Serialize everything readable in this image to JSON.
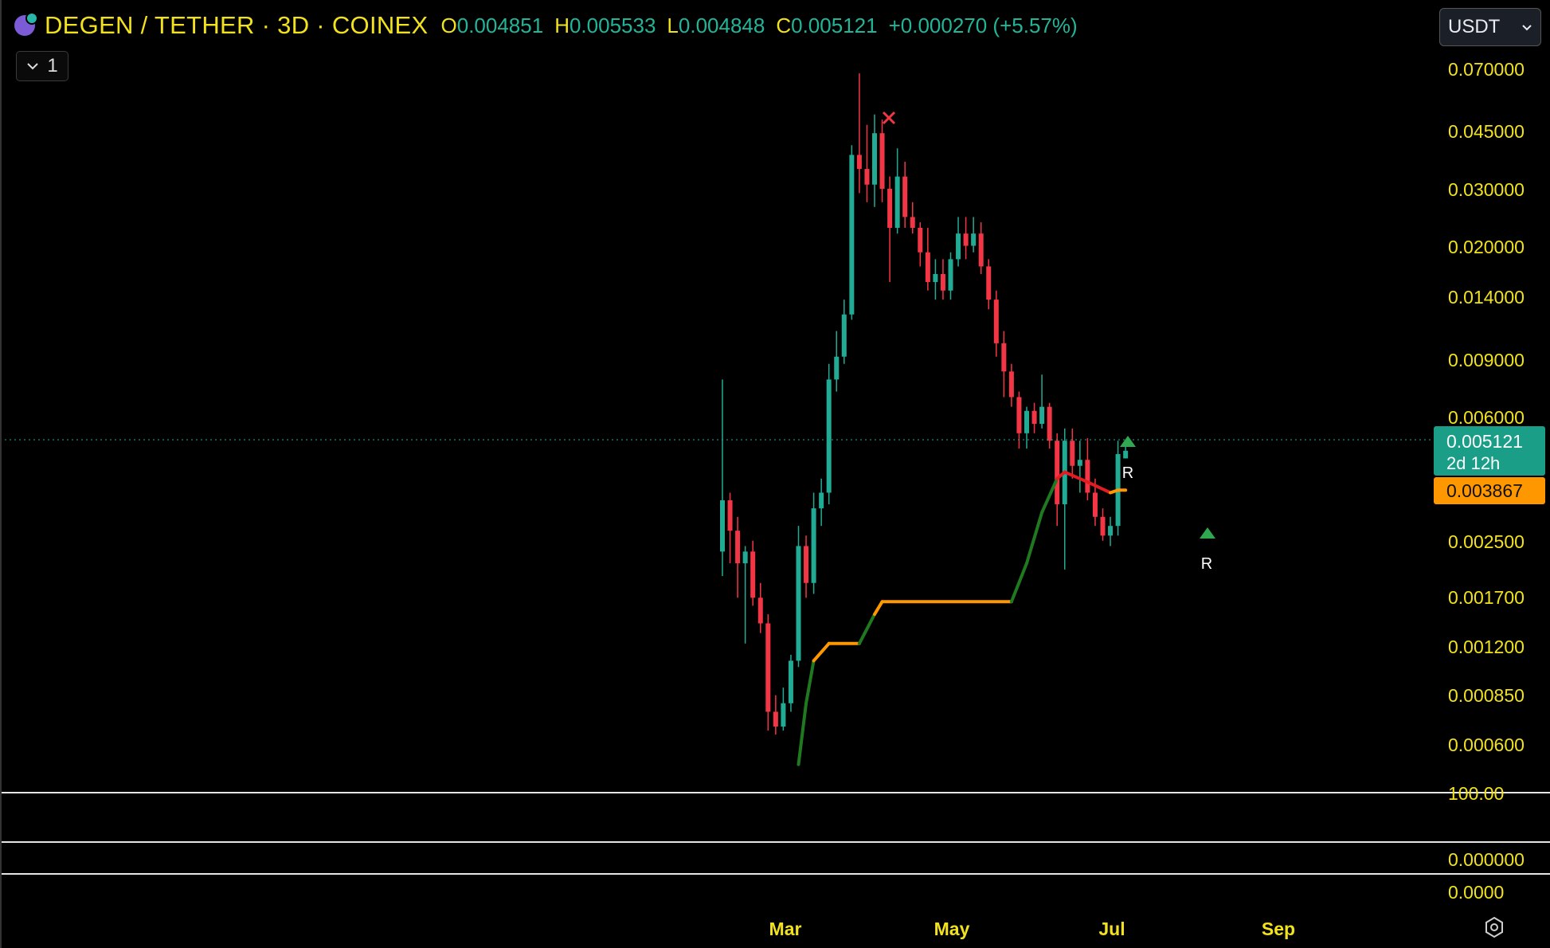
{
  "header": {
    "title": "DEGEN / TETHER · 3D · COINEX",
    "ohlc": [
      {
        "k": "O",
        "v": "0.004851"
      },
      {
        "k": "H",
        "v": "0.005533"
      },
      {
        "k": "L",
        "v": "0.004848"
      },
      {
        "k": "C",
        "v": "0.005121"
      }
    ],
    "change": "+0.000270 (+5.57%)",
    "collapse_count": "1"
  },
  "currency_select": {
    "value": "USDT"
  },
  "price_scale": {
    "ticks": [
      "0.070000",
      "0.045000",
      "0.030000",
      "0.020000",
      "0.014000",
      "0.009000",
      "0.006000",
      "0.002500",
      "0.001700",
      "0.001200",
      "0.000850",
      "0.000600"
    ],
    "last_price": "0.005121",
    "countdown": "2d 12h",
    "indicator_value": "0.003867"
  },
  "sub_panes": {
    "pane1_tick": "100.00",
    "pane2_tick": "0.000000",
    "pane3_tick": "0.0000"
  },
  "markers": {
    "r1": "R",
    "r2": "R"
  },
  "time_axis": [
    "Mar",
    "May",
    "Jul",
    "Sep"
  ],
  "colors": {
    "up": "#22ab94",
    "down": "#f23645",
    "trail_green": "#1f7a1f",
    "trail_orange": "#ff9800",
    "trail_red": "#e31b23",
    "accent": "#f2e21e"
  },
  "icons": [
    "logo-icon",
    "chevron-down-icon",
    "close-x-icon",
    "settings-icon"
  ],
  "chart_data": {
    "type": "candlestick",
    "title": "DEGEN / TETHER · 3D · COINEX",
    "scale": "log",
    "ylim": [
      0.00045,
      0.085
    ],
    "x_labels": [
      "Mar",
      "May",
      "Jul",
      "Sep"
    ],
    "candles": [
      [
        0.0025,
        0.0085,
        0.0021,
        0.0036
      ],
      [
        0.0036,
        0.0038,
        0.0023,
        0.0029
      ],
      [
        0.0029,
        0.0032,
        0.0018,
        0.0023
      ],
      [
        0.0023,
        0.0026,
        0.0013,
        0.0025
      ],
      [
        0.0025,
        0.0027,
        0.0017,
        0.0018
      ],
      [
        0.0018,
        0.002,
        0.0014,
        0.0015
      ],
      [
        0.0015,
        0.0016,
        0.0007,
        0.0008
      ],
      [
        0.0008,
        0.0009,
        0.00068,
        0.00072
      ],
      [
        0.00072,
        0.00095,
        0.0007,
        0.00085
      ],
      [
        0.00085,
        0.0012,
        0.0008,
        0.00115
      ],
      [
        0.00115,
        0.003,
        0.0011,
        0.0026
      ],
      [
        0.0026,
        0.0028,
        0.0018,
        0.002
      ],
      [
        0.002,
        0.0038,
        0.00185,
        0.0034
      ],
      [
        0.0034,
        0.0042,
        0.003,
        0.0038
      ],
      [
        0.0038,
        0.0095,
        0.0035,
        0.0085
      ],
      [
        0.0085,
        0.012,
        0.0078,
        0.01
      ],
      [
        0.01,
        0.015,
        0.0095,
        0.0135
      ],
      [
        0.0135,
        0.045,
        0.013,
        0.042
      ],
      [
        0.042,
        0.075,
        0.032,
        0.038
      ],
      [
        0.038,
        0.052,
        0.03,
        0.034
      ],
      [
        0.034,
        0.056,
        0.029,
        0.049
      ],
      [
        0.049,
        0.054,
        0.03,
        0.033
      ],
      [
        0.033,
        0.036,
        0.017,
        0.025
      ],
      [
        0.025,
        0.044,
        0.024,
        0.036
      ],
      [
        0.036,
        0.04,
        0.025,
        0.027
      ],
      [
        0.027,
        0.03,
        0.024,
        0.025
      ],
      [
        0.025,
        0.026,
        0.019,
        0.021
      ],
      [
        0.021,
        0.025,
        0.016,
        0.017
      ],
      [
        0.017,
        0.02,
        0.015,
        0.018
      ],
      [
        0.018,
        0.02,
        0.015,
        0.016
      ],
      [
        0.016,
        0.021,
        0.015,
        0.02
      ],
      [
        0.02,
        0.027,
        0.019,
        0.024
      ],
      [
        0.024,
        0.027,
        0.02,
        0.022
      ],
      [
        0.022,
        0.027,
        0.021,
        0.024
      ],
      [
        0.024,
        0.026,
        0.018,
        0.019
      ],
      [
        0.019,
        0.02,
        0.014,
        0.015
      ],
      [
        0.015,
        0.016,
        0.01,
        0.011
      ],
      [
        0.011,
        0.012,
        0.0075,
        0.009
      ],
      [
        0.009,
        0.0095,
        0.007,
        0.0075
      ],
      [
        0.0075,
        0.0078,
        0.0052,
        0.0058
      ],
      [
        0.0058,
        0.007,
        0.0052,
        0.0068
      ],
      [
        0.0068,
        0.0072,
        0.0058,
        0.0062
      ],
      [
        0.0062,
        0.0088,
        0.006,
        0.007
      ],
      [
        0.007,
        0.0072,
        0.0052,
        0.0055
      ],
      [
        0.0055,
        0.0058,
        0.003,
        0.0035
      ],
      [
        0.0035,
        0.006,
        0.0022,
        0.0055
      ],
      [
        0.0055,
        0.006,
        0.0042,
        0.0046
      ],
      [
        0.0046,
        0.0055,
        0.0038,
        0.0048
      ],
      [
        0.0048,
        0.0056,
        0.0036,
        0.0038
      ],
      [
        0.0038,
        0.0042,
        0.003,
        0.0032
      ],
      [
        0.0032,
        0.0034,
        0.0027,
        0.0028
      ],
      [
        0.0028,
        0.0032,
        0.0026,
        0.003
      ],
      [
        0.003,
        0.0055,
        0.0028,
        0.005
      ],
      [
        0.00485,
        0.00553,
        0.00485,
        0.00512
      ]
    ],
    "trail_line": [
      {
        "i": 10,
        "v": 0.00055,
        "c": "green"
      },
      {
        "i": 11,
        "v": 0.00085,
        "c": "green"
      },
      {
        "i": 12,
        "v": 0.00115,
        "c": "green"
      },
      {
        "i": 14,
        "v": 0.0013,
        "c": "orange"
      },
      {
        "i": 18,
        "v": 0.0013,
        "c": "orange"
      },
      {
        "i": 20,
        "v": 0.0016,
        "c": "green"
      },
      {
        "i": 21,
        "v": 0.00175,
        "c": "orange"
      },
      {
        "i": 38,
        "v": 0.00175,
        "c": "orange"
      },
      {
        "i": 40,
        "v": 0.0023,
        "c": "green"
      },
      {
        "i": 42,
        "v": 0.0033,
        "c": "green"
      },
      {
        "i": 44,
        "v": 0.0042,
        "c": "green"
      },
      {
        "i": 45,
        "v": 0.0044,
        "c": "red"
      },
      {
        "i": 48,
        "v": 0.0041,
        "c": "red"
      },
      {
        "i": 51,
        "v": 0.0038,
        "c": "red"
      },
      {
        "i": 52,
        "v": 0.00387,
        "c": "orange"
      },
      {
        "i": 53,
        "v": 0.00387,
        "c": "orange"
      }
    ]
  }
}
